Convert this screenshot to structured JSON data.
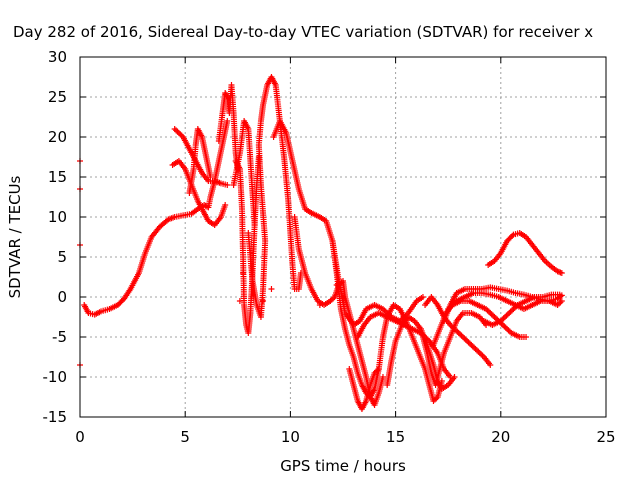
{
  "chart_data": {
    "type": "scatter",
    "title": "Day 282 of 2016, Sidereal Day-to-day VTEC variation (SDTVAR) for receiver x",
    "xlabel": "GPS time / hours",
    "ylabel": "SDTVAR / TECUs",
    "xlim": [
      0,
      25
    ],
    "ylim": [
      -15,
      30
    ],
    "xticks": [
      "0",
      "5",
      "10",
      "15",
      "20",
      "25"
    ],
    "yticks": [
      "-15",
      "-10",
      "-5",
      "0",
      "5",
      "10",
      "15",
      "20",
      "25",
      "30"
    ],
    "grid": true,
    "marker": "plus",
    "color": "#ff0000",
    "series": [
      {
        "points": [
          [
            0.2,
            -1.0
          ],
          [
            0.4,
            -2.0
          ],
          [
            0.7,
            -2.2
          ],
          [
            1.0,
            -1.8
          ],
          [
            1.4,
            -1.5
          ],
          [
            1.8,
            -1.0
          ],
          [
            2.1,
            -0.2
          ],
          [
            2.4,
            1.0
          ],
          [
            2.8,
            3.0
          ],
          [
            3.1,
            5.5
          ],
          [
            3.4,
            7.5
          ],
          [
            3.8,
            8.8
          ],
          [
            4.2,
            9.7
          ],
          [
            4.5,
            10.0
          ],
          [
            4.9,
            10.2
          ],
          [
            5.3,
            10.4
          ],
          [
            5.6,
            11.0
          ],
          [
            5.9,
            11.5
          ],
          [
            6.1,
            11.2
          ],
          [
            6.2,
            12.5
          ],
          [
            6.4,
            14.5
          ],
          [
            6.6,
            17.0
          ],
          [
            6.8,
            19.5
          ],
          [
            7.0,
            22.0
          ]
        ]
      },
      {
        "points": [
          [
            4.4,
            16.5
          ],
          [
            4.7,
            17.0
          ],
          [
            5.0,
            16.0
          ],
          [
            5.3,
            14.0
          ],
          [
            5.6,
            12.0
          ],
          [
            5.9,
            10.5
          ],
          [
            6.1,
            9.5
          ],
          [
            6.4,
            9.0
          ],
          [
            6.7,
            10.0
          ],
          [
            6.9,
            11.5
          ]
        ]
      },
      {
        "points": [
          [
            4.5,
            21.0
          ],
          [
            4.9,
            20.0
          ],
          [
            5.2,
            18.5
          ],
          [
            5.5,
            17.0
          ],
          [
            5.8,
            15.5
          ],
          [
            6.1,
            14.5
          ],
          [
            6.4,
            14.5
          ],
          [
            6.7,
            14.2
          ],
          [
            7.0,
            14.0
          ]
        ]
      },
      {
        "points": [
          [
            5.2,
            13.0
          ],
          [
            5.4,
            16.0
          ],
          [
            5.5,
            19.0
          ],
          [
            5.6,
            21.0
          ],
          [
            5.8,
            20.0
          ],
          [
            6.0,
            17.5
          ],
          [
            6.2,
            15.0
          ]
        ]
      },
      {
        "points": [
          [
            6.6,
            19.5
          ],
          [
            6.8,
            23.5
          ],
          [
            6.9,
            25.5
          ],
          [
            7.0,
            25.0
          ],
          [
            7.1,
            23.0
          ],
          [
            7.2,
            26.5
          ],
          [
            7.3,
            23.0
          ],
          [
            7.4,
            18.0
          ],
          [
            7.5,
            16.0
          ]
        ]
      },
      {
        "points": [
          [
            7.4,
            17.0
          ],
          [
            7.6,
            16.0
          ],
          [
            7.7,
            11.0
          ],
          [
            7.75,
            5.0
          ],
          [
            7.8,
            -1.0
          ],
          [
            7.9,
            -3.5
          ],
          [
            8.0,
            -4.5
          ],
          [
            8.1,
            -2.0
          ],
          [
            8.2,
            3.0
          ],
          [
            8.3,
            9.0
          ],
          [
            8.4,
            14.0
          ],
          [
            8.5,
            17.5
          ]
        ]
      },
      {
        "points": [
          [
            7.3,
            14.0
          ],
          [
            7.6,
            18.0
          ],
          [
            7.8,
            22.0
          ],
          [
            8.0,
            21.0
          ],
          [
            8.1,
            17.0
          ],
          [
            8.2,
            13.0
          ],
          [
            8.3,
            9.0
          ]
        ]
      },
      {
        "points": [
          [
            8.0,
            8.0
          ],
          [
            8.2,
            2.0
          ],
          [
            8.4,
            -1.0
          ],
          [
            8.6,
            -2.5
          ],
          [
            8.7,
            1.0
          ],
          [
            8.8,
            7.0
          ],
          [
            8.6,
            14.0
          ],
          [
            8.5,
            19.0
          ],
          [
            8.6,
            22.0
          ],
          [
            8.7,
            24.0
          ],
          [
            8.9,
            26.5
          ],
          [
            9.1,
            27.5
          ],
          [
            9.3,
            26.5
          ],
          [
            9.5,
            22.0
          ],
          [
            9.7,
            17.5
          ],
          [
            9.9,
            12.0
          ],
          [
            10.0,
            8.0
          ],
          [
            10.1,
            4.0
          ],
          [
            10.2,
            1.0
          ],
          [
            10.4,
            1.0
          ],
          [
            10.5,
            3.0
          ]
        ]
      },
      {
        "points": [
          [
            9.2,
            20.0
          ],
          [
            9.5,
            22.0
          ],
          [
            9.8,
            20.5
          ],
          [
            10.1,
            17.0
          ],
          [
            10.4,
            13.5
          ],
          [
            10.7,
            11.0
          ],
          [
            11.0,
            10.5
          ],
          [
            11.4,
            10.0
          ],
          [
            11.7,
            9.5
          ],
          [
            12.0,
            7.0
          ],
          [
            12.3,
            2.0
          ],
          [
            12.6,
            -2.0
          ],
          [
            13.0,
            -3.5
          ],
          [
            13.3,
            -3.0
          ],
          [
            13.6,
            -1.5
          ],
          [
            14.0,
            -1.0
          ],
          [
            14.4,
            -1.5
          ],
          [
            14.8,
            -2.5
          ],
          [
            15.2,
            -3.0
          ],
          [
            15.6,
            -2.0
          ],
          [
            16.0,
            -0.5
          ],
          [
            16.3,
            0.0
          ]
        ]
      },
      {
        "points": [
          [
            10.2,
            10.0
          ],
          [
            10.4,
            6.0
          ],
          [
            10.7,
            3.0
          ],
          [
            11.0,
            1.0
          ],
          [
            11.3,
            -0.5
          ],
          [
            11.6,
            -1.0
          ],
          [
            11.9,
            -0.5
          ],
          [
            12.1,
            0.0
          ],
          [
            12.3,
            1.5
          ],
          [
            12.5,
            2.0
          ],
          [
            12.6,
            0.0
          ],
          [
            12.8,
            -2.0
          ],
          [
            13.0,
            -4.0
          ],
          [
            13.2,
            -6.0
          ],
          [
            13.4,
            -8.0
          ],
          [
            13.6,
            -10.0
          ],
          [
            13.8,
            -12.5
          ],
          [
            14.0,
            -13.5
          ],
          [
            14.2,
            -12.0
          ],
          [
            14.4,
            -10.0
          ]
        ]
      },
      {
        "points": [
          [
            12.0,
            7.0
          ],
          [
            12.2,
            3.0
          ],
          [
            12.4,
            -1.5
          ],
          [
            12.6,
            -4.0
          ],
          [
            12.8,
            -6.0
          ],
          [
            13.0,
            -7.5
          ],
          [
            13.2,
            -9.5
          ],
          [
            13.4,
            -11.0
          ],
          [
            13.6,
            -12.0
          ],
          [
            13.8,
            -12.5
          ],
          [
            14.0,
            -11.5
          ],
          [
            14.2,
            -9.0
          ],
          [
            14.4,
            -5.0
          ],
          [
            14.6,
            -2.5
          ],
          [
            14.9,
            -1.0
          ],
          [
            15.2,
            -1.5
          ],
          [
            15.5,
            -3.0
          ],
          [
            15.8,
            -5.0
          ],
          [
            16.1,
            -7.0
          ],
          [
            16.4,
            -9.0
          ],
          [
            16.6,
            -11.0
          ],
          [
            16.8,
            -13.0
          ],
          [
            17.0,
            -12.5
          ],
          [
            17.2,
            -10.5
          ]
        ]
      },
      {
        "points": [
          [
            12.8,
            -9.0
          ],
          [
            13.0,
            -11.0
          ],
          [
            13.2,
            -13.0
          ],
          [
            13.4,
            -14.0
          ],
          [
            13.6,
            -13.0
          ],
          [
            13.8,
            -11.0
          ],
          [
            14.0,
            -9.5
          ],
          [
            14.2,
            -9.0
          ]
        ]
      },
      {
        "points": [
          [
            14.6,
            -11.0
          ],
          [
            14.8,
            -8.0
          ],
          [
            15.0,
            -5.5
          ],
          [
            15.3,
            -3.5
          ],
          [
            15.6,
            -2.5
          ],
          [
            15.9,
            -3.0
          ],
          [
            16.2,
            -4.0
          ],
          [
            16.5,
            -6.0
          ],
          [
            16.8,
            -8.5
          ],
          [
            17.0,
            -10.5
          ],
          [
            17.2,
            -11.5
          ],
          [
            17.5,
            -11.0
          ],
          [
            17.8,
            -10.0
          ]
        ]
      },
      {
        "points": [
          [
            13.2,
            -5.0
          ],
          [
            13.5,
            -3.5
          ],
          [
            13.8,
            -2.5
          ],
          [
            14.2,
            -2.0
          ],
          [
            14.6,
            -2.5
          ],
          [
            15.0,
            -3.0
          ],
          [
            15.4,
            -3.5
          ],
          [
            15.8,
            -4.0
          ],
          [
            16.2,
            -4.5
          ],
          [
            16.6,
            -5.5
          ],
          [
            17.0,
            -7.0
          ],
          [
            17.3,
            -9.0
          ],
          [
            17.6,
            -10.0
          ]
        ]
      },
      {
        "points": [
          [
            16.2,
            -4.0
          ],
          [
            16.5,
            -7.0
          ],
          [
            16.7,
            -9.5
          ],
          [
            16.9,
            -11.0
          ],
          [
            17.1,
            -9.0
          ],
          [
            17.3,
            -7.0
          ],
          [
            17.6,
            -5.0
          ],
          [
            17.9,
            -3.0
          ],
          [
            18.2,
            -2.0
          ],
          [
            18.6,
            -2.0
          ],
          [
            19.0,
            -2.5
          ],
          [
            19.3,
            -3.5
          ]
        ]
      },
      {
        "points": [
          [
            16.4,
            -1.0
          ],
          [
            16.7,
            0.0
          ],
          [
            17.0,
            -1.0
          ],
          [
            17.3,
            -2.5
          ],
          [
            17.6,
            -3.5
          ],
          [
            18.0,
            -4.5
          ],
          [
            18.4,
            -5.5
          ],
          [
            18.8,
            -6.5
          ],
          [
            19.2,
            -7.5
          ],
          [
            19.5,
            -8.5
          ]
        ]
      },
      {
        "points": [
          [
            16.8,
            -6.0
          ],
          [
            17.1,
            -4.0
          ],
          [
            17.4,
            -2.0
          ],
          [
            17.7,
            -1.0
          ],
          [
            18.1,
            -0.5
          ],
          [
            18.5,
            -0.5
          ],
          [
            18.9,
            -1.0
          ],
          [
            19.3,
            -1.5
          ],
          [
            19.7,
            -2.5
          ],
          [
            20.1,
            -3.5
          ],
          [
            20.5,
            -4.5
          ],
          [
            20.9,
            -5.0
          ],
          [
            21.2,
            -5.0
          ]
        ]
      },
      {
        "points": [
          [
            17.3,
            -3.0
          ],
          [
            17.6,
            -1.0
          ],
          [
            17.9,
            0.5
          ],
          [
            18.3,
            1.0
          ],
          [
            18.7,
            1.0
          ],
          [
            19.1,
            1.0
          ],
          [
            19.5,
            1.2
          ],
          [
            19.9,
            1.0
          ],
          [
            20.3,
            0.8
          ],
          [
            20.7,
            0.5
          ],
          [
            21.1,
            0.3
          ],
          [
            21.5,
            0.0
          ],
          [
            21.9,
            -0.3
          ],
          [
            22.3,
            -0.5
          ],
          [
            22.7,
            -0.2
          ],
          [
            22.9,
            0.2
          ]
        ]
      },
      {
        "points": [
          [
            17.5,
            -1.5
          ],
          [
            17.9,
            -0.5
          ],
          [
            18.3,
            0.0
          ],
          [
            18.7,
            0.5
          ],
          [
            19.1,
            0.5
          ],
          [
            19.5,
            0.3
          ],
          [
            19.9,
            0.0
          ],
          [
            20.3,
            -0.5
          ],
          [
            20.7,
            -1.0
          ],
          [
            21.1,
            -1.5
          ],
          [
            21.5,
            -1.0
          ],
          [
            21.9,
            -0.5
          ],
          [
            22.3,
            -0.5
          ],
          [
            22.7,
            -1.0
          ],
          [
            22.9,
            -0.5
          ]
        ]
      },
      {
        "points": [
          [
            19.4,
            4.0
          ],
          [
            19.7,
            4.5
          ],
          [
            20.0,
            5.5
          ],
          [
            20.3,
            7.0
          ],
          [
            20.6,
            7.8
          ],
          [
            20.9,
            8.0
          ],
          [
            21.2,
            7.5
          ],
          [
            21.5,
            6.5
          ],
          [
            21.8,
            5.5
          ],
          [
            22.1,
            4.5
          ],
          [
            22.4,
            3.8
          ],
          [
            22.7,
            3.2
          ],
          [
            22.9,
            3.0
          ]
        ]
      },
      {
        "points": [
          [
            19.2,
            -3.0
          ],
          [
            19.6,
            -3.5
          ],
          [
            20.0,
            -3.0
          ],
          [
            20.4,
            -2.0
          ],
          [
            20.8,
            -1.0
          ],
          [
            21.2,
            -0.5
          ],
          [
            21.6,
            0.0
          ],
          [
            22.0,
            0.0
          ],
          [
            22.4,
            0.3
          ],
          [
            22.8,
            0.3
          ]
        ]
      }
    ],
    "isolated_marks": [
      [
        0.0,
        17.0
      ],
      [
        0.0,
        13.5
      ],
      [
        0.0,
        6.5
      ],
      [
        0.0,
        -8.5
      ],
      [
        7.75,
        3.0
      ],
      [
        7.6,
        -0.5
      ],
      [
        8.7,
        -0.5
      ],
      [
        9.1,
        1.0
      ],
      [
        11.4,
        -1.0
      ],
      [
        12.2,
        1.5
      ],
      [
        15.2,
        -1.5
      ]
    ]
  }
}
